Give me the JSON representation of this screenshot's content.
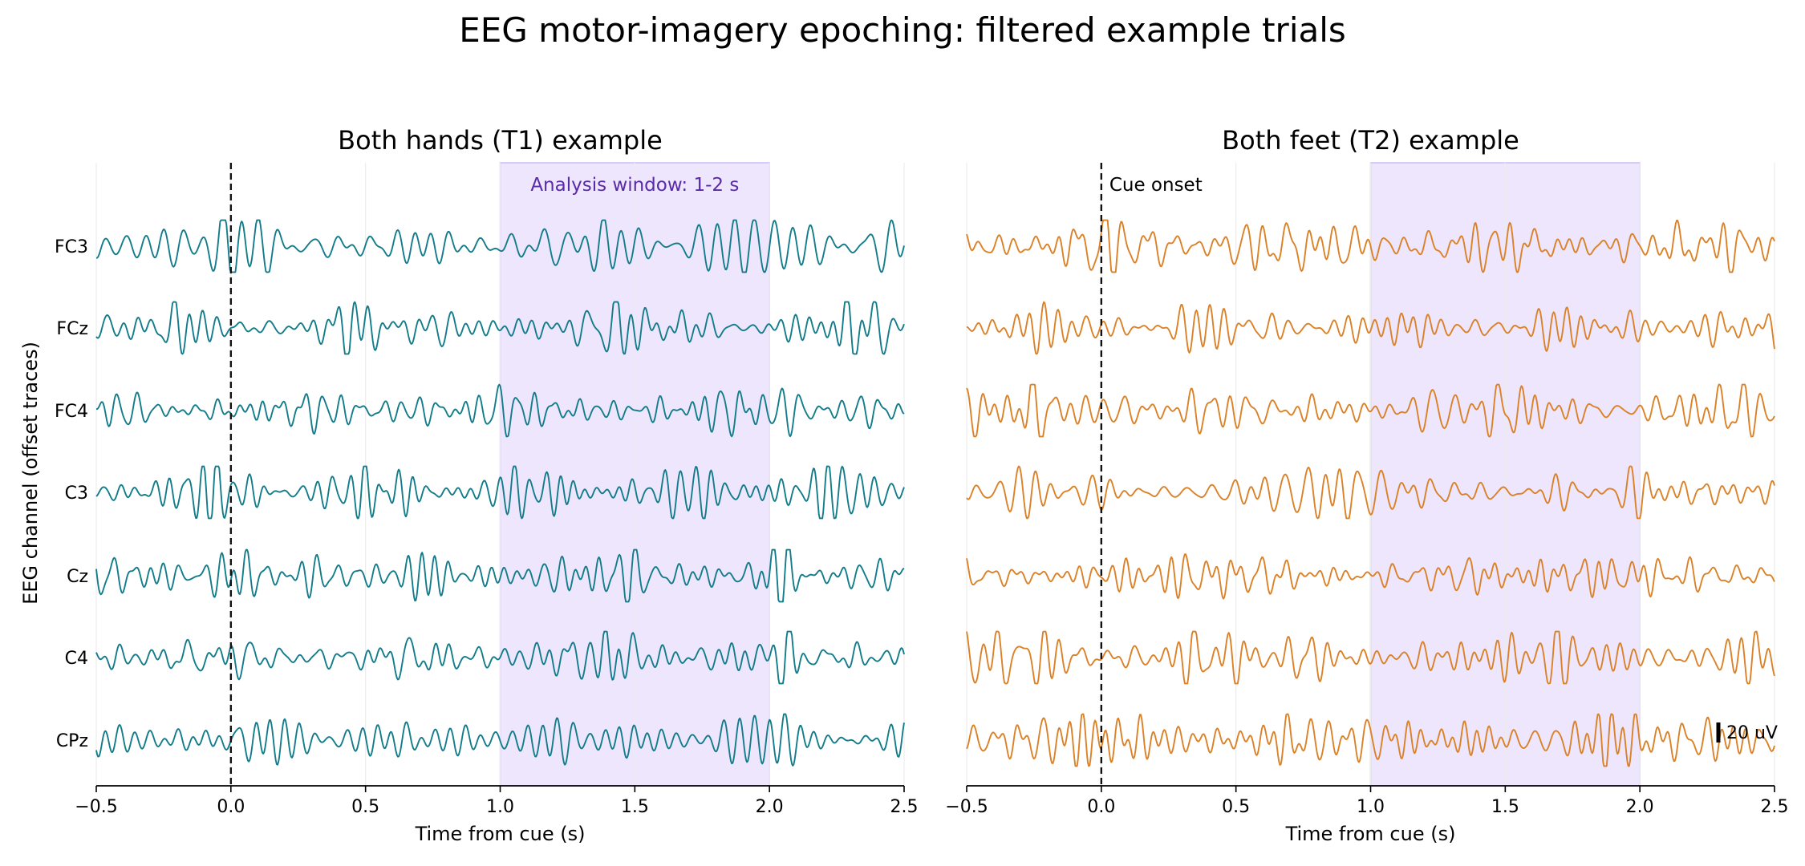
{
  "figure": {
    "title": "EEG motor-imagery epoching: filtered example trials",
    "ylabel": "EEG channel (offset traces)",
    "xlabel": "Time from cue (s)",
    "window_label": "Analysis window: 1-2 s",
    "cue_label": "Cue onset",
    "scalebar_label": "20 uV",
    "scalebar_uv": 20
  },
  "colors": {
    "t1_trace": "#137c8a",
    "t2_trace": "#db8127",
    "window_fill": "#ede6fd",
    "window_edge": "#cdbdf3",
    "window_text": "#5a2aa6",
    "cue_line": "#111111",
    "grid": "#ececec",
    "axis": "#000000"
  },
  "chart_data": [
    {
      "type": "line",
      "title": "Both hands (T1) example",
      "xlabel": "Time from cue (s)",
      "ylabel": "EEG channel (offset traces)",
      "xlim": [
        -0.5,
        2.5
      ],
      "xticks": [
        "-0.5",
        "0.0",
        "0.5",
        "1.0",
        "1.5",
        "2.0",
        "2.5"
      ],
      "channels": [
        "FC3",
        "FCz",
        "FC4",
        "C3",
        "Cz",
        "C4",
        "CPz"
      ],
      "cue_time": 0.0,
      "analysis_window": [
        1.0,
        2.0
      ],
      "grid": "vertical",
      "signal": {
        "type": "band-limited EEG (filtered)",
        "approx_amplitude_uv": 25,
        "seed": 11
      }
    },
    {
      "type": "line",
      "title": "Both feet (T2) example",
      "xlabel": "Time from cue (s)",
      "ylabel": "",
      "xlim": [
        -0.5,
        2.5
      ],
      "xticks": [
        "-0.5",
        "0.0",
        "0.5",
        "1.0",
        "1.5",
        "2.0",
        "2.5"
      ],
      "channels": [
        "FC3",
        "FCz",
        "FC4",
        "C3",
        "Cz",
        "C4",
        "CPz"
      ],
      "cue_time": 0.0,
      "analysis_window": [
        1.0,
        2.0
      ],
      "grid": "vertical",
      "signal": {
        "type": "band-limited EEG (filtered)",
        "approx_amplitude_uv": 25,
        "seed": 29
      }
    }
  ]
}
